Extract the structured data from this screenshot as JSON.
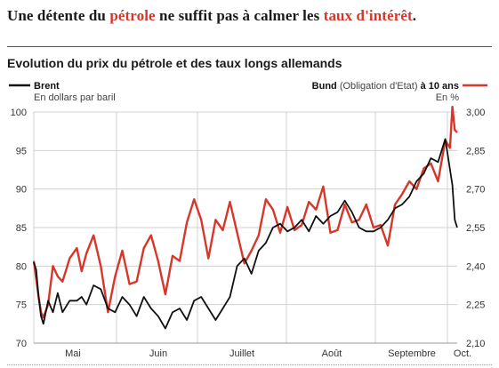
{
  "headline": {
    "part1": "Une détente du ",
    "part2": "pétrole",
    "part3": " ne suffit pas à calmer les ",
    "part4": "taux d'intérêt",
    "part5": "."
  },
  "colors": {
    "brent": "#111111",
    "bund": "#d7372a",
    "grid": "#d0d0d0"
  },
  "chart_data": {
    "type": "line",
    "title": "Evolution du prix du pétrole et des taux longs allemands",
    "x_ticks": [
      "Mai",
      "Juin",
      "Juillet",
      "Août",
      "Septembre",
      "Oct."
    ],
    "left_axis": {
      "ticks": [
        "100",
        "95",
        "90",
        "85",
        "80",
        "75",
        "70"
      ],
      "range": [
        70,
        100
      ]
    },
    "right_axis": {
      "ticks": [
        "3,00",
        "2,85",
        "2,70",
        "2,55",
        "2,40",
        "2,25",
        "2,10"
      ],
      "range": [
        2.1,
        3.0
      ]
    },
    "legend": {
      "brent_name": "Brent",
      "brent_unit": "En dollars par baril",
      "bund_name": "Bund",
      "bund_desc": " (Obligation d'Etat) ",
      "bund_suffix": "à 10 ans",
      "bund_unit": "En %"
    },
    "series": [
      {
        "key": "brent",
        "axis": "left",
        "x": [
          0,
          1,
          2,
          3,
          4,
          6,
          8,
          10,
          12,
          15,
          18,
          20,
          22,
          25,
          28,
          31,
          34,
          37,
          40,
          43,
          46,
          49,
          52,
          55,
          58,
          61,
          64,
          67,
          70,
          73,
          76,
          79,
          82,
          85,
          88,
          91,
          94,
          97,
          100,
          103,
          106,
          109,
          112,
          115,
          118,
          121,
          124,
          127,
          130,
          133,
          136,
          139,
          142,
          145,
          148,
          151,
          154,
          157,
          160,
          163,
          166,
          169,
          172,
          175,
          176,
          177
        ],
        "values": [
          80.5,
          79.5,
          76,
          73.5,
          72.5,
          75.5,
          74,
          76.5,
          74,
          75.5,
          75.5,
          76,
          75,
          77.5,
          77,
          74.5,
          74,
          76,
          75,
          73.5,
          76,
          74.5,
          73.5,
          71.9,
          74,
          74.5,
          73,
          75.5,
          76,
          74.5,
          73,
          74.5,
          76,
          80,
          81,
          79,
          82,
          83,
          85,
          85.5,
          84.5,
          85,
          86,
          84.5,
          86.5,
          85.5,
          86.5,
          87,
          88.5,
          87,
          85,
          84.5,
          84.5,
          85,
          86,
          87.5,
          88,
          89,
          91,
          92,
          94,
          93.5,
          96.5,
          90.5,
          86,
          85
        ]
      },
      {
        "key": "bund",
        "axis": "right",
        "x": [
          0,
          1,
          2,
          3,
          4,
          6,
          8,
          10,
          12,
          15,
          18,
          20,
          22,
          25,
          28,
          31,
          34,
          37,
          40,
          43,
          46,
          49,
          52,
          55,
          58,
          61,
          64,
          67,
          70,
          73,
          76,
          79,
          82,
          85,
          88,
          91,
          94,
          97,
          100,
          103,
          106,
          109,
          112,
          115,
          118,
          121,
          124,
          127,
          130,
          133,
          136,
          139,
          142,
          145,
          148,
          151,
          154,
          157,
          160,
          163,
          166,
          169,
          172,
          174,
          175,
          176,
          177
        ],
        "values": [
          2.42,
          2.35,
          2.28,
          2.22,
          2.2,
          2.25,
          2.4,
          2.36,
          2.34,
          2.43,
          2.47,
          2.38,
          2.45,
          2.52,
          2.4,
          2.22,
          2.36,
          2.46,
          2.33,
          2.34,
          2.47,
          2.52,
          2.42,
          2.29,
          2.44,
          2.42,
          2.57,
          2.66,
          2.58,
          2.43,
          2.58,
          2.54,
          2.65,
          2.53,
          2.41,
          2.46,
          2.52,
          2.66,
          2.62,
          2.53,
          2.63,
          2.54,
          2.56,
          2.65,
          2.62,
          2.71,
          2.53,
          2.54,
          2.64,
          2.57,
          2.58,
          2.64,
          2.55,
          2.56,
          2.48,
          2.64,
          2.68,
          2.73,
          2.7,
          2.78,
          2.8,
          2.73,
          2.89,
          2.86,
          3.02,
          2.93,
          2.92
        ]
      }
    ]
  }
}
